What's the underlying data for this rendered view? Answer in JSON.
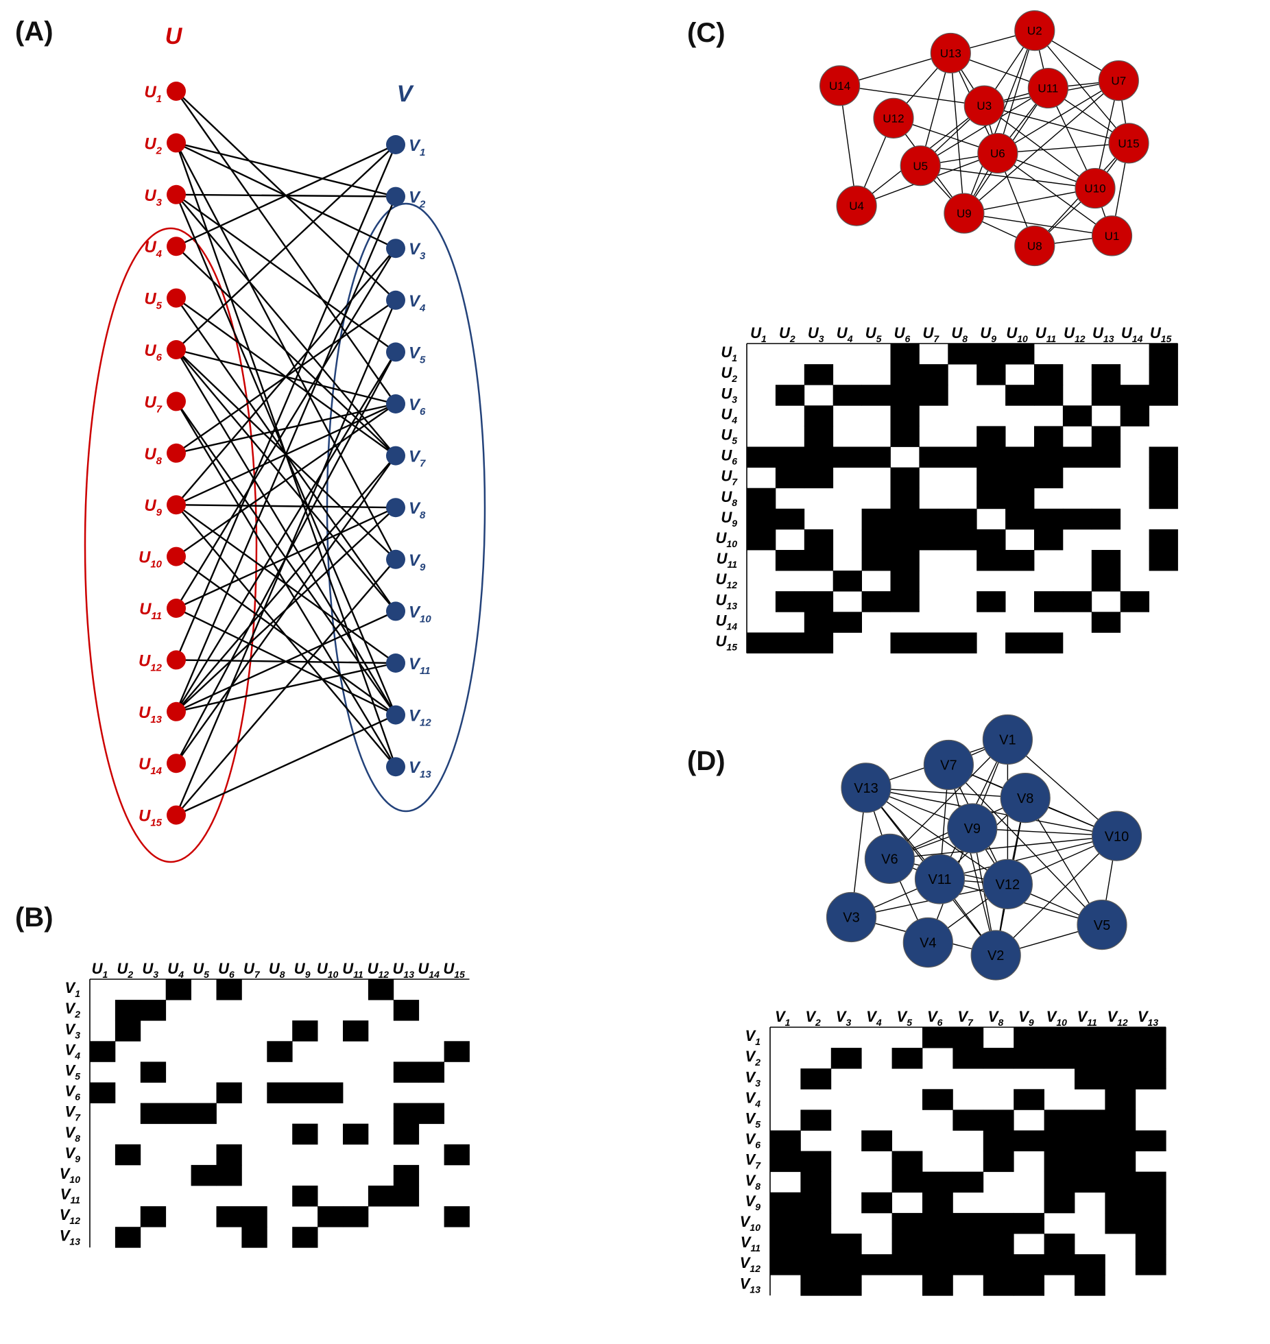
{
  "colors": {
    "u": "#cc0000",
    "v": "#23427a",
    "edge": "#000000",
    "cell": "#000000"
  },
  "panels": {
    "a": {
      "label": "(A)",
      "set_u": "U",
      "set_v": "V"
    },
    "b": {
      "label": "(B)"
    },
    "c": {
      "label": "(C)"
    },
    "d": {
      "label": "(D)"
    }
  },
  "u_nodes": [
    {
      "base": "U",
      "sub": "1"
    },
    {
      "base": "U",
      "sub": "2"
    },
    {
      "base": "U",
      "sub": "3"
    },
    {
      "base": "U",
      "sub": "4"
    },
    {
      "base": "U",
      "sub": "5"
    },
    {
      "base": "U",
      "sub": "6"
    },
    {
      "base": "U",
      "sub": "7"
    },
    {
      "base": "U",
      "sub": "8"
    },
    {
      "base": "U",
      "sub": "9"
    },
    {
      "base": "U",
      "sub": "10"
    },
    {
      "base": "U",
      "sub": "11"
    },
    {
      "base": "U",
      "sub": "12"
    },
    {
      "base": "U",
      "sub": "13"
    },
    {
      "base": "U",
      "sub": "14"
    },
    {
      "base": "U",
      "sub": "15"
    }
  ],
  "v_nodes": [
    {
      "base": "V",
      "sub": "1"
    },
    {
      "base": "V",
      "sub": "2"
    },
    {
      "base": "V",
      "sub": "3"
    },
    {
      "base": "V",
      "sub": "4"
    },
    {
      "base": "V",
      "sub": "5"
    },
    {
      "base": "V",
      "sub": "6"
    },
    {
      "base": "V",
      "sub": "7"
    },
    {
      "base": "V",
      "sub": "8"
    },
    {
      "base": "V",
      "sub": "9"
    },
    {
      "base": "V",
      "sub": "10"
    },
    {
      "base": "V",
      "sub": "11"
    },
    {
      "base": "V",
      "sub": "12"
    },
    {
      "base": "V",
      "sub": "13"
    }
  ],
  "bipartite_matrix": [
    [
      0,
      0,
      0,
      1,
      0,
      1,
      0,
      0,
      0,
      0,
      0,
      1,
      0,
      0,
      0
    ],
    [
      0,
      1,
      1,
      0,
      0,
      0,
      0,
      0,
      0,
      0,
      0,
      0,
      1,
      0,
      0
    ],
    [
      0,
      1,
      0,
      0,
      0,
      0,
      0,
      0,
      1,
      0,
      1,
      0,
      0,
      0,
      0
    ],
    [
      1,
      0,
      0,
      0,
      0,
      0,
      0,
      1,
      0,
      0,
      0,
      0,
      0,
      0,
      1
    ],
    [
      0,
      0,
      1,
      0,
      0,
      0,
      0,
      0,
      0,
      0,
      0,
      0,
      1,
      1,
      0
    ],
    [
      1,
      0,
      0,
      0,
      0,
      1,
      0,
      1,
      1,
      1,
      0,
      0,
      0,
      0,
      0
    ],
    [
      0,
      0,
      1,
      1,
      1,
      0,
      0,
      0,
      0,
      0,
      0,
      0,
      1,
      1,
      0
    ],
    [
      0,
      0,
      0,
      0,
      0,
      0,
      0,
      0,
      1,
      0,
      1,
      0,
      1,
      0,
      0
    ],
    [
      0,
      1,
      0,
      0,
      0,
      1,
      0,
      0,
      0,
      0,
      0,
      0,
      0,
      0,
      1
    ],
    [
      0,
      0,
      0,
      0,
      1,
      1,
      0,
      0,
      0,
      0,
      0,
      0,
      1,
      0,
      0
    ],
    [
      0,
      0,
      0,
      0,
      0,
      0,
      0,
      0,
      1,
      0,
      0,
      1,
      1,
      0,
      0
    ],
    [
      0,
      0,
      1,
      0,
      0,
      1,
      1,
      0,
      0,
      1,
      1,
      0,
      0,
      0,
      1
    ],
    [
      0,
      1,
      0,
      0,
      0,
      0,
      1,
      0,
      1,
      0,
      0,
      0,
      0,
      0,
      0
    ]
  ],
  "u_matrix": [
    [
      0,
      0,
      0,
      0,
      0,
      1,
      0,
      1,
      1,
      1,
      0,
      0,
      0,
      0,
      1
    ],
    [
      0,
      0,
      1,
      0,
      0,
      1,
      1,
      0,
      1,
      0,
      1,
      0,
      1,
      0,
      1
    ],
    [
      0,
      1,
      0,
      1,
      1,
      1,
      1,
      0,
      0,
      1,
      1,
      0,
      1,
      1,
      1
    ],
    [
      0,
      0,
      1,
      0,
      0,
      1,
      0,
      0,
      0,
      0,
      0,
      1,
      0,
      1,
      0
    ],
    [
      0,
      0,
      1,
      0,
      0,
      1,
      0,
      0,
      1,
      0,
      1,
      0,
      1,
      0,
      0
    ],
    [
      1,
      1,
      1,
      1,
      1,
      0,
      1,
      1,
      1,
      1,
      1,
      1,
      1,
      0,
      1
    ],
    [
      0,
      1,
      1,
      0,
      0,
      1,
      0,
      0,
      1,
      1,
      1,
      0,
      0,
      0,
      1
    ],
    [
      1,
      0,
      0,
      0,
      0,
      1,
      0,
      0,
      1,
      1,
      0,
      0,
      0,
      0,
      1
    ],
    [
      1,
      1,
      0,
      0,
      1,
      1,
      1,
      1,
      0,
      1,
      1,
      1,
      1,
      0,
      0
    ],
    [
      1,
      0,
      1,
      0,
      1,
      1,
      1,
      1,
      1,
      0,
      1,
      0,
      0,
      0,
      1
    ],
    [
      0,
      1,
      1,
      0,
      1,
      1,
      0,
      0,
      1,
      1,
      0,
      0,
      1,
      0,
      1
    ],
    [
      0,
      0,
      0,
      1,
      0,
      1,
      0,
      0,
      0,
      0,
      0,
      0,
      1,
      0,
      0
    ],
    [
      0,
      1,
      1,
      0,
      1,
      1,
      0,
      0,
      1,
      0,
      1,
      1,
      0,
      1,
      0
    ],
    [
      0,
      0,
      1,
      1,
      0,
      0,
      0,
      0,
      0,
      0,
      0,
      0,
      1,
      0,
      0
    ],
    [
      1,
      1,
      1,
      0,
      0,
      1,
      1,
      1,
      0,
      1,
      1,
      0,
      0,
      0,
      0
    ]
  ],
  "v_matrix": [
    [
      0,
      0,
      0,
      0,
      0,
      1,
      1,
      0,
      1,
      1,
      1,
      1,
      1
    ],
    [
      0,
      0,
      1,
      0,
      1,
      0,
      1,
      1,
      1,
      1,
      1,
      1,
      1
    ],
    [
      0,
      1,
      0,
      0,
      0,
      0,
      0,
      0,
      0,
      0,
      1,
      1,
      1
    ],
    [
      0,
      0,
      0,
      0,
      0,
      1,
      0,
      0,
      1,
      0,
      0,
      1,
      0
    ],
    [
      0,
      1,
      0,
      0,
      0,
      0,
      1,
      1,
      0,
      1,
      1,
      1,
      0
    ],
    [
      1,
      0,
      0,
      1,
      0,
      0,
      0,
      1,
      1,
      1,
      1,
      1,
      1
    ],
    [
      1,
      1,
      0,
      0,
      1,
      0,
      0,
      1,
      0,
      1,
      1,
      1,
      0
    ],
    [
      0,
      1,
      0,
      0,
      1,
      1,
      1,
      0,
      0,
      1,
      1,
      1,
      1
    ],
    [
      1,
      1,
      0,
      1,
      0,
      1,
      0,
      0,
      0,
      1,
      0,
      1,
      1
    ],
    [
      1,
      1,
      0,
      0,
      1,
      1,
      1,
      1,
      1,
      0,
      0,
      1,
      1
    ],
    [
      1,
      1,
      1,
      0,
      1,
      1,
      1,
      1,
      0,
      1,
      0,
      0,
      1
    ],
    [
      1,
      1,
      1,
      1,
      1,
      1,
      1,
      1,
      1,
      1,
      1,
      0,
      1
    ],
    [
      0,
      1,
      1,
      0,
      0,
      1,
      0,
      1,
      1,
      0,
      1,
      0,
      0
    ]
  ],
  "u_graph_nodes": [
    {
      "label": "U1",
      "gx": 0.85,
      "gy": 0.86
    },
    {
      "label": "U2",
      "gx": 0.62,
      "gy": 0.04
    },
    {
      "label": "U3",
      "gx": 0.47,
      "gy": 0.34
    },
    {
      "label": "U4",
      "gx": 0.09,
      "gy": 0.74
    },
    {
      "label": "U5",
      "gx": 0.28,
      "gy": 0.58
    },
    {
      "label": "U6",
      "gx": 0.51,
      "gy": 0.53
    },
    {
      "label": "U7",
      "gx": 0.87,
      "gy": 0.24
    },
    {
      "label": "U8",
      "gx": 0.62,
      "gy": 0.9
    },
    {
      "label": "U9",
      "gx": 0.41,
      "gy": 0.77
    },
    {
      "label": "U10",
      "gx": 0.8,
      "gy": 0.67
    },
    {
      "label": "U11",
      "gx": 0.66,
      "gy": 0.27
    },
    {
      "label": "U12",
      "gx": 0.2,
      "gy": 0.39
    },
    {
      "label": "U13",
      "gx": 0.37,
      "gy": 0.13
    },
    {
      "label": "U14",
      "gx": 0.04,
      "gy": 0.26
    },
    {
      "label": "U15",
      "gx": 0.9,
      "gy": 0.49
    }
  ],
  "v_graph_nodes": [
    {
      "label": "V1",
      "gx": 0.58,
      "gy": 0.05
    },
    {
      "label": "V2",
      "gx": 0.54,
      "gy": 0.9
    },
    {
      "label": "V3",
      "gx": 0.05,
      "gy": 0.75
    },
    {
      "label": "V4",
      "gx": 0.31,
      "gy": 0.85
    },
    {
      "label": "V5",
      "gx": 0.9,
      "gy": 0.78
    },
    {
      "label": "V6",
      "gx": 0.18,
      "gy": 0.52
    },
    {
      "label": "V7",
      "gx": 0.38,
      "gy": 0.15
    },
    {
      "label": "V8",
      "gx": 0.64,
      "gy": 0.28
    },
    {
      "label": "V9",
      "gx": 0.46,
      "gy": 0.4
    },
    {
      "label": "V10",
      "gx": 0.95,
      "gy": 0.43
    },
    {
      "label": "V11",
      "gx": 0.35,
      "gy": 0.6
    },
    {
      "label": "V12",
      "gx": 0.58,
      "gy": 0.62
    },
    {
      "label": "V13",
      "gx": 0.1,
      "gy": 0.24
    }
  ]
}
